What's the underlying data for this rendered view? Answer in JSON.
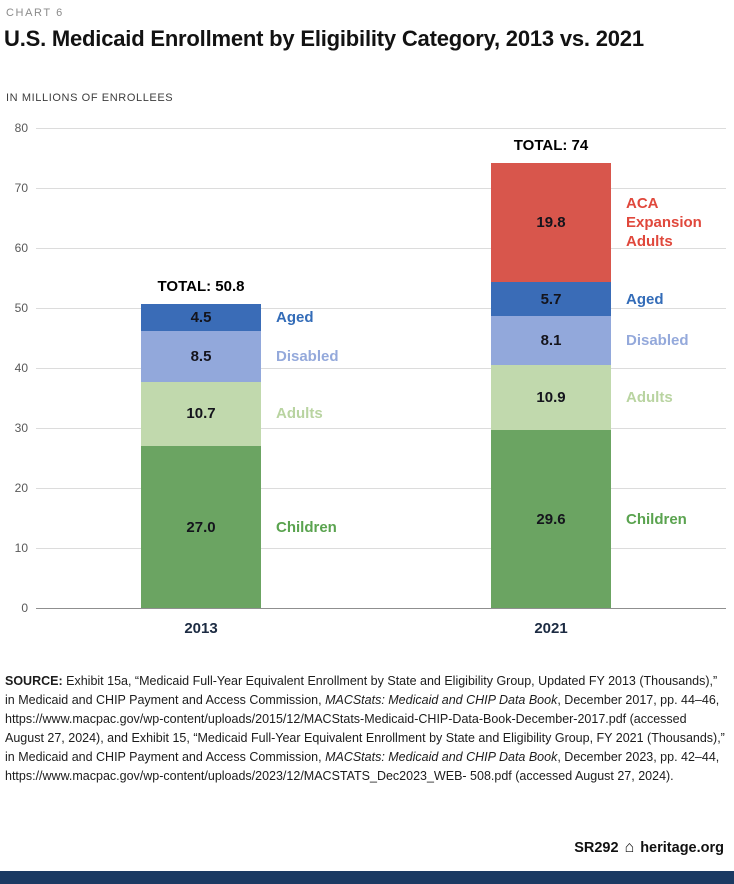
{
  "header": {
    "kicker": "CHART 6",
    "title": "U.S. Medicaid Enrollment by Eligibility Category, 2013 vs. 2021",
    "units_label": "IN MILLIONS OF ENROLLEES"
  },
  "chart_data": {
    "type": "bar",
    "stacked": true,
    "title": "U.S. Medicaid Enrollment by Eligibility Category, 2013 vs. 2021",
    "ylabel": "IN MILLIONS OF ENROLLEES",
    "ylim": [
      0,
      80
    ],
    "ytick_step": 10,
    "grid": true,
    "categories": [
      "2013",
      "2021"
    ],
    "bar_totals": [
      "TOTAL: 50.8",
      "TOTAL: 74"
    ],
    "series": [
      {
        "name": "Children",
        "values": [
          27.0,
          29.6
        ],
        "color": "#6ba462",
        "label_color": "#5aa34f"
      },
      {
        "name": "Adults",
        "values": [
          10.7,
          10.9
        ],
        "color": "#c1d9ad",
        "label_color": "#b9d4a1"
      },
      {
        "name": "Disabled",
        "values": [
          8.5,
          8.1
        ],
        "color": "#92a8db",
        "label_color": "#94a9db"
      },
      {
        "name": "Aged",
        "values": [
          4.5,
          5.7
        ],
        "color": "#3a6cb7",
        "label_color": "#336cb8"
      },
      {
        "name": "ACA Expansion Adults",
        "values": [
          null,
          19.8
        ],
        "color": "#d8564c",
        "label_color": "#e0483c",
        "label_lines": [
          "ACA",
          "Expansion",
          "Adults"
        ]
      }
    ]
  },
  "source": {
    "segments": [
      {
        "text": "SOURCE: ",
        "bold": true
      },
      {
        "text": "Exhibit 15a, “Medicaid Full-Year Equivalent Enrollment by State and Eligibility Group, Updated FY 2013 (Thousands),” in Medicaid and CHIP Payment and Access Commission, "
      },
      {
        "text": "MACStats: Medicaid and CHIP Data Book",
        "italic": true
      },
      {
        "text": ", December 2017, pp. 44–46, https://www.macpac.gov/wp-content/uploads/2015/12/MACStats-Medicaid-CHIP-Data-Book-December-2017.pdf (accessed August 27, 2024), and Exhibit 15, “Medicaid Full-Year Equivalent Enrollment by State and Eligibility Group, FY 2021 (Thousands),” in Medicaid and CHIP Payment and Access Commission, "
      },
      {
        "text": "MACStats: Medicaid and CHIP Data Book",
        "italic": true
      },
      {
        "text": ", December 2023, pp. 42–44, https://www.macpac.gov/wp-content/uploads/2023/12/MACSTATS_Dec2023_WEB- 508.pdf (accessed August 27, 2024)."
      }
    ]
  },
  "footer": {
    "report_id": "SR292",
    "logo_icon": "⌂",
    "site": "heritage.org",
    "bar_color": "#1b3a63"
  }
}
